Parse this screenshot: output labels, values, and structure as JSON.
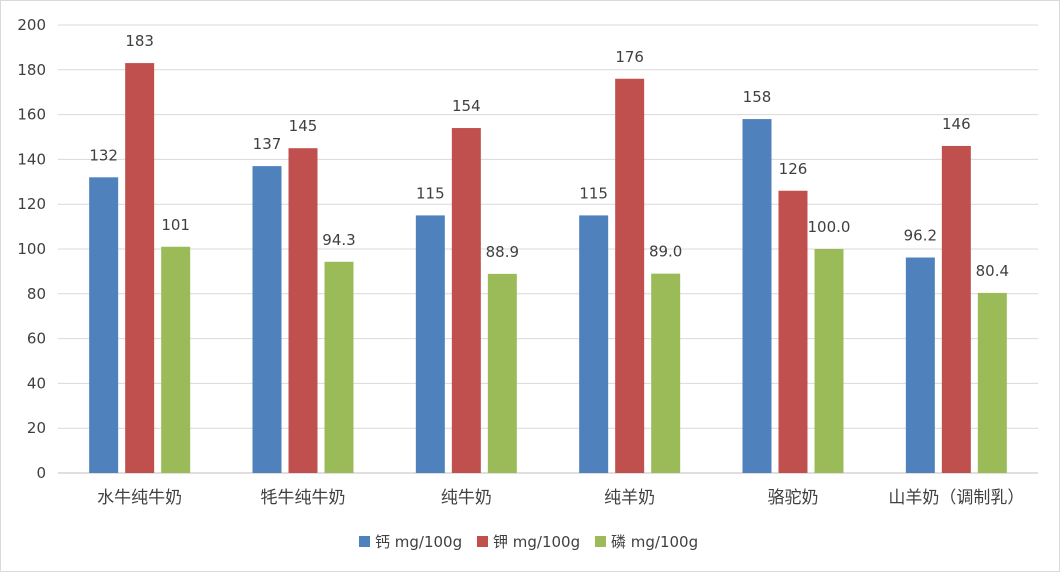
{
  "chart_data": {
    "type": "bar",
    "categories": [
      "水牛纯牛奶",
      "牦牛纯牛奶",
      "纯牛奶",
      "纯羊奶",
      "骆驼奶",
      "山羊奶（调制乳）"
    ],
    "series": [
      {
        "name": "钙 mg/100g",
        "values": [
          132,
          137,
          115,
          115,
          158,
          96.2
        ],
        "labels": [
          "132",
          "137",
          "115",
          "115",
          "158",
          "96.2"
        ],
        "color": "#4F81BD"
      },
      {
        "name": "钾 mg/100g",
        "values": [
          183,
          145,
          154,
          176,
          126,
          146
        ],
        "labels": [
          "183",
          "145",
          "154",
          "176",
          "126",
          "146"
        ],
        "color": "#C0504D"
      },
      {
        "name": "磷 mg/100g",
        "values": [
          101,
          94.3,
          88.9,
          89.0,
          100.0,
          80.4
        ],
        "labels": [
          "101",
          "94.3",
          "88.9",
          "89.0",
          "100.0",
          "80.4"
        ],
        "color": "#9BBB59"
      }
    ],
    "ylim": [
      0,
      200
    ],
    "yticks": [
      "0",
      "20",
      "40",
      "60",
      "80",
      "100",
      "120",
      "140",
      "160",
      "180",
      "200"
    ],
    "grid": true,
    "legend": "bottom",
    "gridColor": "#d9d9d9",
    "axisColor": "#bfbfbf"
  }
}
